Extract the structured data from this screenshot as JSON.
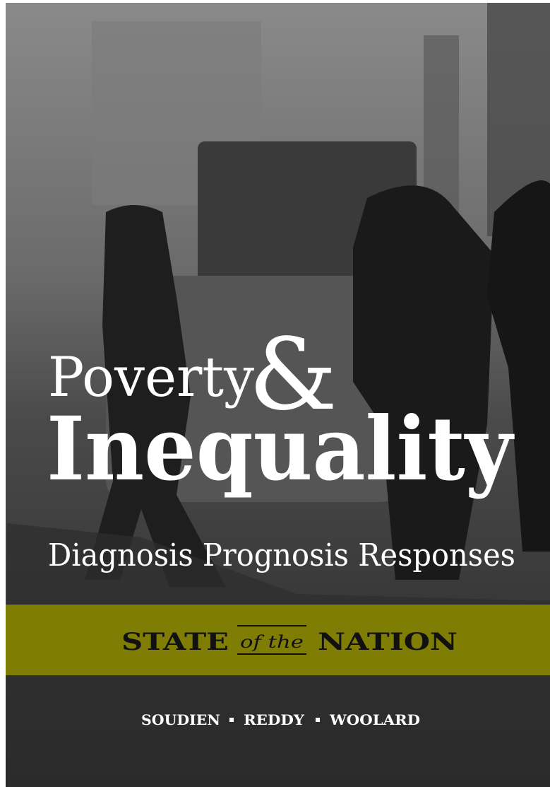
{
  "cover": {
    "title_line1": "Poverty",
    "ampersand": "&",
    "title_line2": "Inequality",
    "subtitle": "Diagnosis Prognosis Responses",
    "series": {
      "first": "STATE",
      "middle": "of the",
      "last": "NATION"
    },
    "authors": [
      "SOUDIEN",
      "REDDY",
      "WOOLARD"
    ]
  }
}
